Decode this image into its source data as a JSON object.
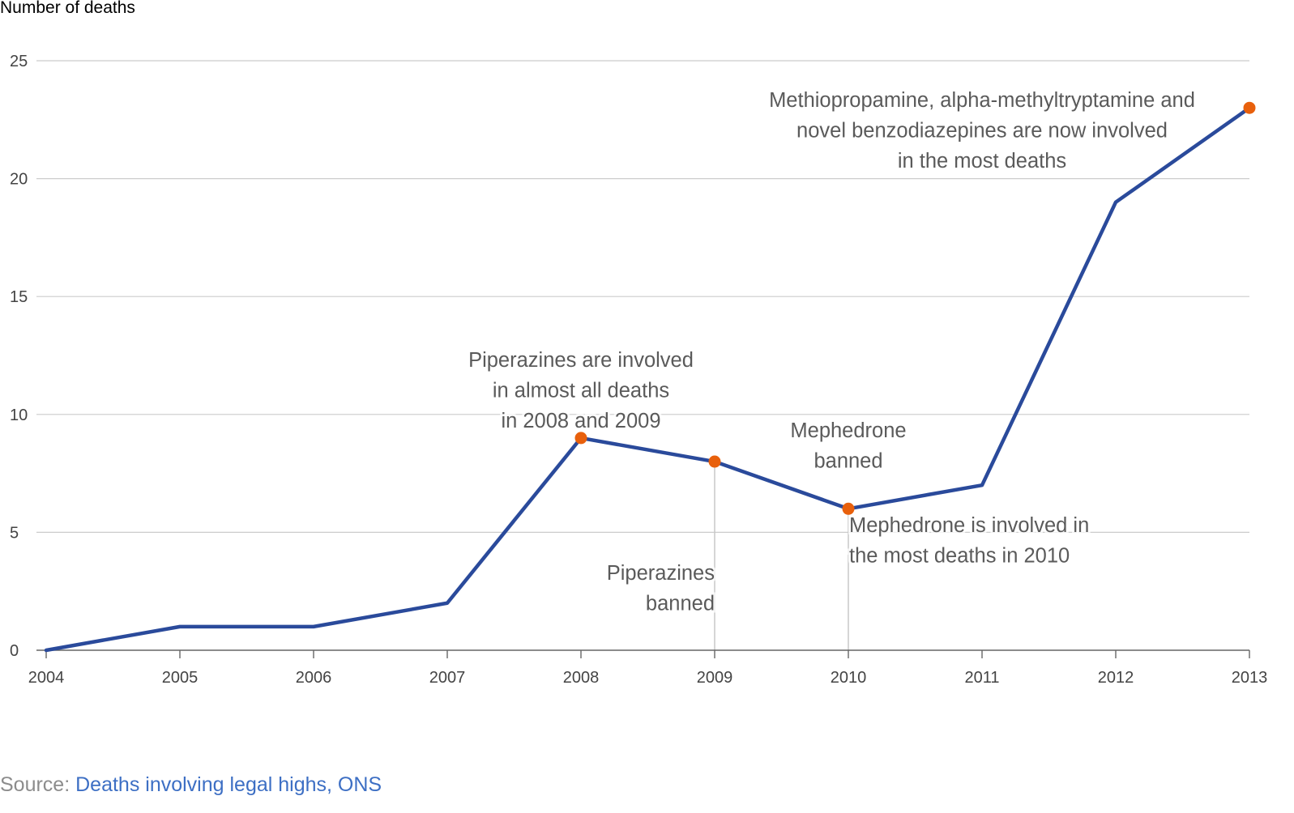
{
  "chart_data": {
    "type": "line",
    "ylabel": "Number of deaths",
    "xlabel": "",
    "x": [
      2004,
      2005,
      2006,
      2007,
      2008,
      2009,
      2010,
      2011,
      2012,
      2013
    ],
    "series": [
      {
        "values": [
          0,
          1,
          1,
          2,
          9,
          8,
          6,
          7,
          19,
          23
        ]
      }
    ],
    "xlim": [
      2004,
      2013
    ],
    "ylim": [
      0,
      25
    ],
    "yticks": [
      0,
      5,
      10,
      15,
      20,
      25
    ],
    "xticks": [
      "2004",
      "2005",
      "2006",
      "2007",
      "2008",
      "2009",
      "2010",
      "2011",
      "2012",
      "2013"
    ],
    "grid": "horizontal",
    "highlighted_points": [
      2008,
      2009,
      2010,
      2013
    ],
    "event_lines": [
      2009,
      2010
    ],
    "annotations": [
      {
        "lines": [
          "Piperazines are involved",
          "in almost all deaths",
          "in 2008 and 2009"
        ],
        "x": 2008,
        "y": 9
      },
      {
        "lines": [
          "Piperazines",
          "banned"
        ],
        "x": 2009,
        "y": 0
      },
      {
        "lines": [
          "Mephedrone",
          "banned"
        ],
        "x": 2010,
        "y": 6
      },
      {
        "lines": [
          "Mephedrone is involved in",
          "the most deaths in 2010"
        ],
        "x": 2010,
        "y": 6
      },
      {
        "lines": [
          "Methiopropamine, alpha-methyltryptamine and",
          "novel benzodiazepines are now involved",
          "in the most deaths"
        ],
        "x": 2013,
        "y": 23
      }
    ],
    "colors": {
      "line": "#2a4a9b",
      "marker": "#e8600c",
      "grid": "#cccccc",
      "annotation_text": "#5a5a5a",
      "tick_text": "#444444"
    }
  },
  "source": {
    "prefix": "Source: ",
    "link_text": "Deaths involving legal highs, ONS",
    "link_color": "#3d6fc4"
  }
}
